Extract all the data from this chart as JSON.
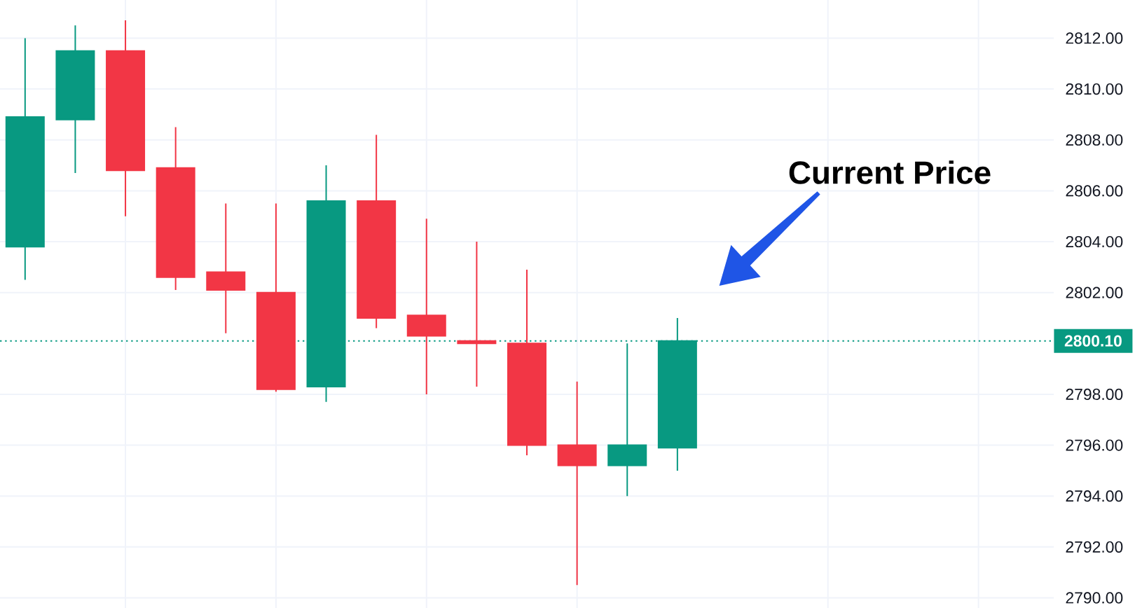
{
  "chart_data": {
    "type": "candlestick",
    "categories": [
      null,
      null,
      null,
      null,
      null,
      null,
      null,
      null,
      null,
      null,
      null,
      null,
      null,
      null,
      null,
      null,
      null,
      null,
      null,
      null,
      null
    ],
    "ohlc": [
      [
        2803.8,
        2812.0,
        2802.5,
        2808.9
      ],
      [
        2808.8,
        2812.5,
        2806.7,
        2811.5
      ],
      [
        2811.5,
        2812.7,
        2805.0,
        2806.8
      ],
      [
        2806.9,
        2808.5,
        2802.1,
        2802.6
      ],
      [
        2802.8,
        2805.5,
        2800.4,
        2802.1
      ],
      [
        2802.0,
        2805.5,
        2798.1,
        2798.2
      ],
      [
        2798.3,
        2807.0,
        2797.7,
        2805.6
      ],
      [
        2805.6,
        2808.2,
        2800.6,
        2801.0
      ],
      [
        2801.1,
        2804.9,
        2798.0,
        2800.3
      ],
      [
        2800.1,
        2804.0,
        2798.3,
        2800.0
      ],
      [
        2800.0,
        2802.9,
        2795.6,
        2796.0
      ],
      [
        2796.0,
        2798.5,
        2790.5,
        2795.2
      ],
      [
        2795.2,
        2800.0,
        2794.0,
        2796.0
      ],
      [
        2795.9,
        2801.0,
        2795.0,
        2800.1
      ],
      null,
      null,
      null,
      null,
      null,
      null,
      null
    ],
    "colors": [
      "#089981",
      "#089981",
      "#f23645",
      "#f23645",
      "#f23645",
      "#f23645",
      "#089981",
      "#f23645",
      "#f23645",
      "#f23645",
      "#f23645",
      "#f23645",
      "#089981",
      "#089981",
      null,
      null,
      null,
      null,
      null,
      null,
      null
    ],
    "ylim": [
      2789.6,
      2813.5
    ],
    "yticks": [
      {
        "value": 2790,
        "label": "2790.00"
      },
      {
        "value": 2792,
        "label": "2792.00"
      },
      {
        "value": 2794,
        "label": "2794.00"
      },
      {
        "value": 2796,
        "label": "2796.00"
      },
      {
        "value": 2798,
        "label": "2798.00"
      },
      {
        "value": 2802,
        "label": "2802.00"
      },
      {
        "value": 2804,
        "label": "2804.00"
      },
      {
        "value": 2806,
        "label": "2806.00"
      },
      {
        "value": 2808,
        "label": "2808.00"
      },
      {
        "value": 2810,
        "label": "2810.00"
      },
      {
        "value": 2812,
        "label": "2812.00"
      }
    ],
    "tick_labels": "y",
    "grid": true,
    "ref_lines": [
      {
        "axis": "y",
        "value": 2800.1,
        "label": "2800.10",
        "color": "#089981",
        "line_style": "dotted"
      }
    ],
    "annotations": [
      "Current Price"
    ]
  }
}
